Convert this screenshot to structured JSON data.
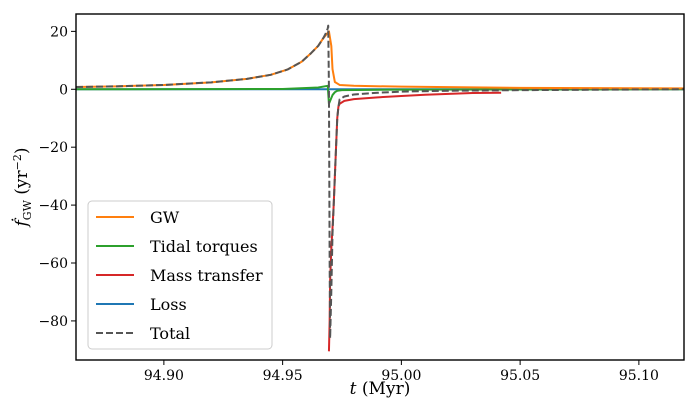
{
  "chart_data": {
    "type": "line",
    "xlabel": "t (Myr)",
    "ylabel": "ḟGW (yr−2)",
    "xlim": [
      94.863,
      95.119
    ],
    "ylim": [
      -93.5,
      26
    ],
    "x_ticks": [
      94.9,
      94.95,
      95.0,
      95.05,
      95.1
    ],
    "x_tick_labels": [
      "94.90",
      "94.95",
      "95.00",
      "95.05",
      "95.10"
    ],
    "y_ticks": [
      20,
      0,
      -20,
      -40,
      -60,
      -80
    ],
    "y_tick_labels": [
      "20",
      "0",
      "−20",
      "−40",
      "−60",
      "−80"
    ],
    "grid": false,
    "legend_position": "lower-left",
    "colors": {
      "GW": "#ff7f0e",
      "Tidal torques": "#2ca02c",
      "Mass transfer": "#d62728",
      "Loss": "#1f77b4",
      "Total": "#555555"
    },
    "series": [
      {
        "name": "GW",
        "style": "solid",
        "x": [
          94.863,
          94.88,
          94.9,
          94.92,
          94.935,
          94.945,
          94.952,
          94.958,
          94.962,
          94.965,
          94.967,
          94.9685,
          94.9695,
          94.9705,
          94.971,
          94.972,
          94.974,
          94.98,
          95.0,
          95.05,
          95.119
        ],
        "y": [
          0.8,
          1.0,
          1.5,
          2.4,
          3.6,
          5.0,
          6.8,
          9.5,
          12.5,
          15.0,
          17.5,
          19.0,
          20.0,
          15.0,
          7.0,
          2.5,
          1.5,
          1.2,
          0.9,
          0.5,
          0.3
        ]
      },
      {
        "name": "Tidal torques",
        "style": "solid",
        "x": [
          94.863,
          94.95,
          94.965,
          94.969,
          94.9695,
          94.97,
          94.971,
          94.972,
          94.973,
          94.975,
          95.0,
          95.119
        ],
        "y": [
          0.0,
          0.1,
          0.6,
          1.2,
          -5.0,
          -4.0,
          -2.0,
          -1.0,
          -0.5,
          -0.3,
          -0.1,
          0.0
        ]
      },
      {
        "name": "Mass transfer",
        "style": "solid",
        "x": [
          94.9695,
          94.9698,
          94.97,
          94.9705,
          94.971,
          94.9715,
          94.972,
          94.9725,
          94.973,
          94.9735,
          94.974,
          94.976,
          94.98,
          94.99,
          95.0,
          95.01,
          95.02,
          95.03,
          95.042
        ],
        "y": [
          -90.5,
          -80.0,
          -66.0,
          -55.0,
          -48.0,
          -40.0,
          -30.0,
          -20.0,
          -10.0,
          -6.0,
          -5.0,
          -4.0,
          -3.4,
          -2.8,
          -2.3,
          -1.9,
          -1.6,
          -1.3,
          -1.2
        ]
      },
      {
        "name": "Loss",
        "style": "solid",
        "x": [
          94.863,
          94.95,
          95.0,
          95.05,
          95.119
        ],
        "y": [
          0.0,
          0.0,
          0.0,
          0.0,
          0.0
        ]
      },
      {
        "name": "Total",
        "style": "dashed",
        "x": [
          94.863,
          94.88,
          94.9,
          94.92,
          94.935,
          94.945,
          94.952,
          94.958,
          94.962,
          94.965,
          94.967,
          94.968,
          94.969,
          94.9692,
          94.9695,
          94.9698,
          94.97,
          94.9705,
          94.971,
          94.9715,
          94.972,
          94.9725,
          94.973,
          94.9735,
          94.974,
          94.976,
          94.98,
          94.99,
          95.0,
          95.02,
          95.05,
          95.119
        ],
        "y": [
          0.8,
          1.0,
          1.5,
          2.4,
          3.6,
          5.0,
          6.8,
          9.5,
          12.5,
          15.0,
          17.5,
          19.0,
          21.0,
          22.0,
          0.0,
          -60.0,
          -86.0,
          -70.0,
          -50.0,
          -40.0,
          -30.0,
          -20.0,
          -10.0,
          -6.0,
          -3.5,
          -2.5,
          -1.8,
          -1.2,
          -0.8,
          -0.5,
          -0.3,
          0.0
        ]
      }
    ]
  }
}
